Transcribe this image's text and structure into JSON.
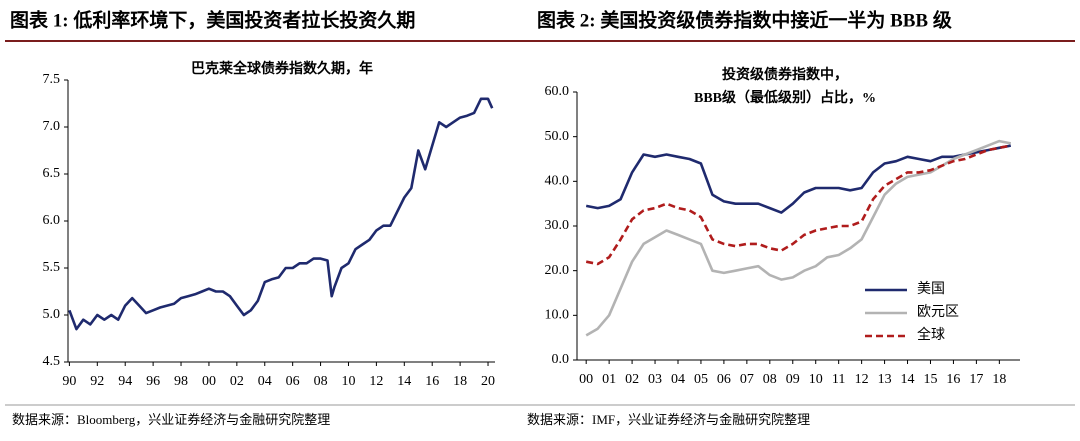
{
  "chart_data": [
    {
      "type": "line",
      "figure_title": "图表 1:  低利率环境下，美国投资者拉长投资久期",
      "title": [
        "巴克莱全球债券指数久期，年"
      ],
      "source": "数据来源：Bloomberg，兴业证券经济与金融研究院整理",
      "x": [
        1990,
        1990.5,
        1991,
        1991.5,
        1992,
        1992.5,
        1993,
        1993.5,
        1994,
        1994.5,
        1995,
        1995.5,
        1996,
        1996.5,
        1997,
        1997.5,
        1998,
        1998.5,
        1999,
        1999.5,
        2000,
        2000.5,
        2001,
        2001.5,
        2002,
        2002.5,
        2003,
        2003.5,
        2004,
        2004.5,
        2005,
        2005.5,
        2006,
        2006.5,
        2007,
        2007.5,
        2008,
        2008.5,
        2008.8,
        2009,
        2009.5,
        2010,
        2010.5,
        2011,
        2011.5,
        2012,
        2012.5,
        2013,
        2013.5,
        2014,
        2014.5,
        2015,
        2015.5,
        2016,
        2016.5,
        2017,
        2017.5,
        2018,
        2018.5,
        2019,
        2019.5,
        2020,
        2020.3
      ],
      "values": [
        5.05,
        4.85,
        4.95,
        4.9,
        5.0,
        4.95,
        5.0,
        4.95,
        5.1,
        5.18,
        5.1,
        5.02,
        5.05,
        5.08,
        5.1,
        5.12,
        5.18,
        5.2,
        5.22,
        5.25,
        5.28,
        5.25,
        5.25,
        5.2,
        5.1,
        5.0,
        5.05,
        5.15,
        5.35,
        5.38,
        5.4,
        5.5,
        5.5,
        5.55,
        5.55,
        5.6,
        5.6,
        5.58,
        5.2,
        5.3,
        5.5,
        5.55,
        5.7,
        5.75,
        5.8,
        5.9,
        5.95,
        5.95,
        6.1,
        6.25,
        6.35,
        6.75,
        6.55,
        6.8,
        7.05,
        7.0,
        7.05,
        7.1,
        7.12,
        7.15,
        7.3,
        7.3,
        7.2
      ],
      "color": "#1f2a6e",
      "xlim": [
        1989.9,
        2020.5
      ],
      "xticks": [
        {
          "value": 1990,
          "label": "90"
        },
        {
          "value": 1992,
          "label": "92"
        },
        {
          "value": 1994,
          "label": "94"
        },
        {
          "value": 1996,
          "label": "96"
        },
        {
          "value": 1998,
          "label": "98"
        },
        {
          "value": 2000,
          "label": "00"
        },
        {
          "value": 2002,
          "label": "02"
        },
        {
          "value": 2004,
          "label": "04"
        },
        {
          "value": 2006,
          "label": "06"
        },
        {
          "value": 2008,
          "label": "08"
        },
        {
          "value": 2010,
          "label": "10"
        },
        {
          "value": 2012,
          "label": "12"
        },
        {
          "value": 2014,
          "label": "14"
        },
        {
          "value": 2016,
          "label": "16"
        },
        {
          "value": 2018,
          "label": "18"
        },
        {
          "value": 2020,
          "label": "20"
        }
      ],
      "ylim": [
        4.5,
        7.5
      ],
      "yticks": [
        4.5,
        {
          "value": 5,
          "label": "5.0"
        },
        5.5,
        {
          "value": 6,
          "label": "6.0"
        },
        6.5,
        {
          "value": 7,
          "label": "7.0"
        },
        7.5
      ]
    },
    {
      "type": "line",
      "figure_title": "图表 2:  美国投资级债券指数中接近一半为 BBB 级",
      "title": [
        "投资级债券指数中，",
        "BBB级（最低级别）占比，%"
      ],
      "source": "数据来源：IMF，兴业证券经济与金融研究院整理",
      "x": [
        2000,
        2000.5,
        2001,
        2001.5,
        2002,
        2002.5,
        2003,
        2003.5,
        2004,
        2004.5,
        2005,
        2005.5,
        2006,
        2006.5,
        2007,
        2007.5,
        2008,
        2008.5,
        2009,
        2009.5,
        2010,
        2010.5,
        2011,
        2011.5,
        2012,
        2012.5,
        2013,
        2013.5,
        2014,
        2014.5,
        2015,
        2015.5,
        2016,
        2016.5,
        2017,
        2017.5,
        2018,
        2018.5
      ],
      "series": [
        {
          "name": "美国",
          "color": "#1f2a6e",
          "style": "solid",
          "values": [
            34.5,
            34,
            34.5,
            36,
            42,
            46,
            45.5,
            46,
            45.5,
            45,
            44,
            37,
            35.5,
            35,
            35,
            35,
            34,
            33,
            35,
            37.5,
            38.5,
            38.5,
            38.5,
            38,
            38.5,
            42,
            44,
            44.5,
            45.5,
            45,
            44.5,
            45.5,
            45.5,
            46,
            46.5,
            47,
            47.5,
            48
          ]
        },
        {
          "name": "欧元区",
          "color": "#b3b3b3",
          "style": "solid",
          "values": [
            5.5,
            7,
            10,
            16,
            22,
            26,
            27.5,
            29,
            28,
            27,
            26,
            20,
            19.5,
            20,
            20.5,
            21,
            19,
            18,
            18.5,
            20,
            21,
            23,
            23.5,
            25,
            27,
            32,
            37,
            39.5,
            41,
            41.5,
            42,
            43.5,
            45,
            46,
            47,
            48,
            49,
            48.5
          ]
        },
        {
          "name": "全球",
          "color": "#b01c1c",
          "style": "dashed",
          "values": [
            22,
            21.5,
            23,
            27,
            31.5,
            33.5,
            34,
            35,
            34,
            33.5,
            32,
            27,
            26,
            25.5,
            26,
            26,
            25,
            24.5,
            26,
            28,
            29,
            29.5,
            30,
            30,
            31,
            36,
            39,
            40.5,
            42,
            42,
            42.5,
            43.5,
            44.5,
            45,
            46,
            47,
            47.5,
            48
          ]
        }
      ],
      "legend": "lower right",
      "xlim": [
        1999.6,
        2018.9
      ],
      "xticks": [
        {
          "value": 2000,
          "label": "00"
        },
        {
          "value": 2001,
          "label": "01"
        },
        {
          "value": 2002,
          "label": "02"
        },
        {
          "value": 2003,
          "label": "03"
        },
        {
          "value": 2004,
          "label": "04"
        },
        {
          "value": 2005,
          "label": "05"
        },
        {
          "value": 2006,
          "label": "06"
        },
        {
          "value": 2007,
          "label": "07"
        },
        {
          "value": 2008,
          "label": "08"
        },
        {
          "value": 2009,
          "label": "09"
        },
        {
          "value": 2010,
          "label": "10"
        },
        {
          "value": 2011,
          "label": "11"
        },
        {
          "value": 2012,
          "label": "12"
        },
        {
          "value": 2013,
          "label": "13"
        },
        {
          "value": 2014,
          "label": "14"
        },
        {
          "value": 2015,
          "label": "15"
        },
        {
          "value": 2016,
          "label": "16"
        },
        {
          "value": 2017,
          "label": "17"
        },
        {
          "value": 2018,
          "label": "18"
        }
      ],
      "ylim": [
        0,
        60
      ],
      "yticks": [
        {
          "value": 0,
          "label": "0.0"
        },
        {
          "value": 10,
          "label": "10.0"
        },
        {
          "value": 20,
          "label": "20.0"
        },
        {
          "value": 30,
          "label": "30.0"
        },
        {
          "value": 40,
          "label": "40.0"
        },
        {
          "value": 50,
          "label": "50.0"
        },
        {
          "value": 60,
          "label": "60.0"
        }
      ]
    }
  ]
}
